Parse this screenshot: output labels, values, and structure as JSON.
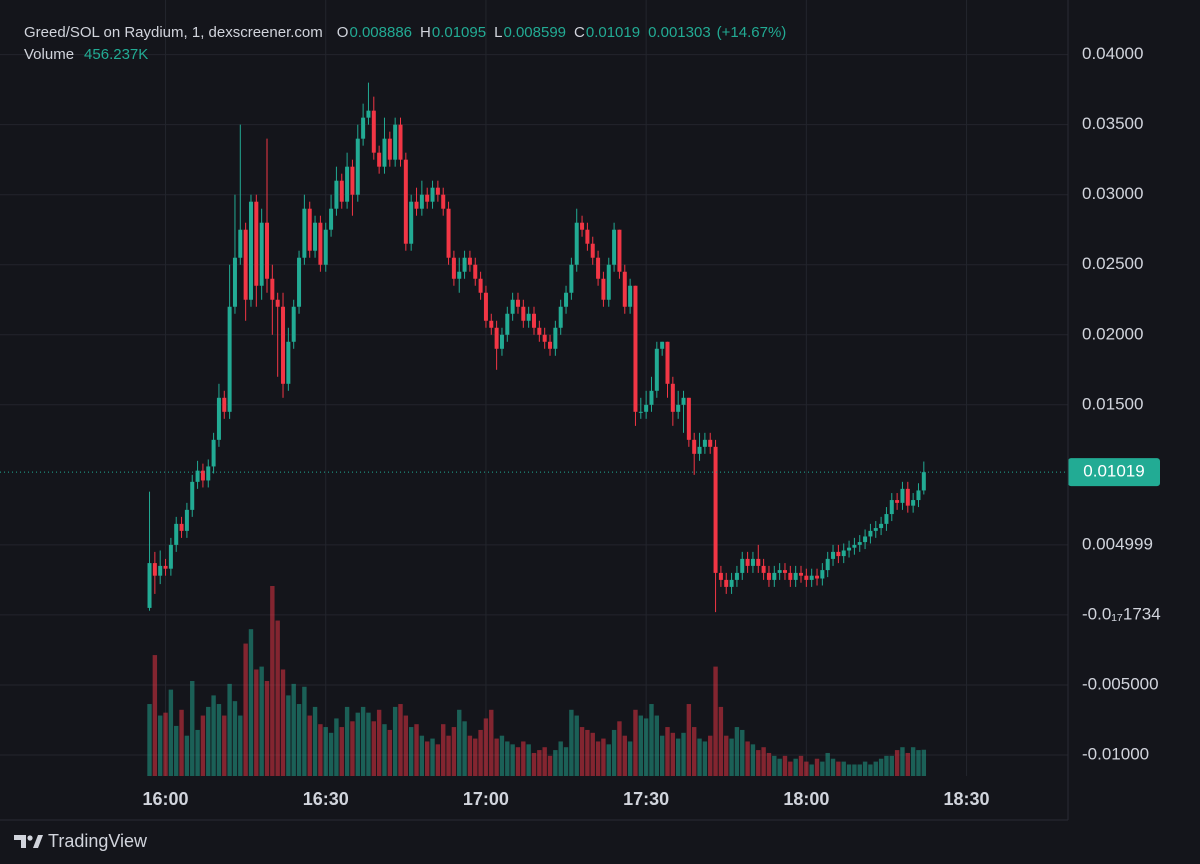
{
  "chart_data": {
    "type": "candlestick",
    "title": "Greed/SOL on Raydium, 1, dexscreener.com",
    "ohlc_labels": [
      "O",
      "H",
      "L",
      "C"
    ],
    "change": 0.001303,
    "change_label": "(+14.67%)",
    "volume_label": "Volume",
    "last_volume_label": "456.237K",
    "up_color": "#22ab94",
    "down_color": "#f23645",
    "grid": true,
    "xlim": [
      "15:29",
      "18:49"
    ],
    "xticks": [
      "16:00",
      "16:30",
      "17:00",
      "17:30",
      "18:00",
      "18:30"
    ],
    "ylim": [
      -0.0115,
      0.0439
    ],
    "yticks": [
      {
        "value": 0.04,
        "label": "0.04000"
      },
      {
        "value": 0.035,
        "label": "0.03500"
      },
      {
        "value": 0.03,
        "label": "0.03000"
      },
      {
        "value": 0.025,
        "label": "0.02500"
      },
      {
        "value": 0.02,
        "label": "0.02000"
      },
      {
        "value": 0.015,
        "label": "0.01500"
      },
      0.004999,
      {
        "value": -1.734e-18,
        "label": "-0.0₁₇1734"
      },
      {
        "value": -0.005,
        "label": "-0.005000"
      },
      {
        "value": -0.01,
        "label": "-0.01000"
      }
    ],
    "x": [
      "15:57",
      "15:58",
      "15:59",
      "16:00",
      "16:01",
      "16:02",
      "16:03",
      "16:04",
      "16:05",
      "16:06",
      "16:07",
      "16:08",
      "16:09",
      "16:10",
      "16:11",
      "16:12",
      "16:13",
      "16:14",
      "16:15",
      "16:16",
      "16:17",
      "16:18",
      "16:19",
      "16:20",
      "16:21",
      "16:22",
      "16:23",
      "16:24",
      "16:25",
      "16:26",
      "16:27",
      "16:28",
      "16:29",
      "16:30",
      "16:31",
      "16:32",
      "16:33",
      "16:34",
      "16:35",
      "16:36",
      "16:37",
      "16:38",
      "16:39",
      "16:40",
      "16:41",
      "16:42",
      "16:43",
      "16:44",
      "16:45",
      "16:46",
      "16:47",
      "16:48",
      "16:49",
      "16:50",
      "16:51",
      "16:52",
      "16:53",
      "16:54",
      "16:55",
      "16:56",
      "16:57",
      "16:58",
      "16:59",
      "17:00",
      "17:01",
      "17:02",
      "17:03",
      "17:04",
      "17:05",
      "17:06",
      "17:07",
      "17:08",
      "17:09",
      "17:10",
      "17:11",
      "17:12",
      "17:13",
      "17:14",
      "17:15",
      "17:16",
      "17:17",
      "17:18",
      "17:19",
      "17:20",
      "17:21",
      "17:22",
      "17:23",
      "17:24",
      "17:25",
      "17:26",
      "17:27",
      "17:28",
      "17:29",
      "17:30",
      "17:31",
      "17:32",
      "17:33",
      "17:34",
      "17:35",
      "17:36",
      "17:37",
      "17:38",
      "17:39",
      "17:40",
      "17:41",
      "17:42",
      "17:43",
      "17:44",
      "17:45",
      "17:46",
      "17:47",
      "17:48",
      "17:49",
      "17:50",
      "17:51",
      "17:52",
      "17:53",
      "17:54",
      "17:55",
      "17:56",
      "17:57",
      "17:58",
      "17:59",
      "18:00",
      "18:01",
      "18:02",
      "18:03",
      "18:04",
      "18:05",
      "18:06",
      "18:07",
      "18:08",
      "18:09",
      "18:10",
      "18:11",
      "18:12",
      "18:13",
      "18:14",
      "18:15",
      "18:16",
      "18:17",
      "18:18",
      "18:19",
      "18:20",
      "18:21",
      "18:22"
    ],
    "open": [
      0.0005,
      0.0037,
      0.0028,
      0.0035,
      0.0033,
      0.005,
      0.0065,
      0.006,
      0.0075,
      0.0095,
      0.0103,
      0.0096,
      0.0106,
      0.0125,
      0.0155,
      0.0145,
      0.022,
      0.0255,
      0.0275,
      0.0225,
      0.0295,
      0.0235,
      0.028,
      0.024,
      0.0225,
      0.022,
      0.0165,
      0.0195,
      0.022,
      0.0255,
      0.029,
      0.026,
      0.028,
      0.025,
      0.0275,
      0.029,
      0.031,
      0.0295,
      0.032,
      0.03,
      0.034,
      0.0355,
      0.036,
      0.033,
      0.032,
      0.034,
      0.0325,
      0.035,
      0.0325,
      0.0265,
      0.0295,
      0.029,
      0.03,
      0.0295,
      0.0305,
      0.03,
      0.029,
      0.0255,
      0.024,
      0.0245,
      0.0255,
      0.025,
      0.024,
      0.023,
      0.021,
      0.0205,
      0.019,
      0.02,
      0.0215,
      0.0225,
      0.022,
      0.021,
      0.0215,
      0.0205,
      0.02,
      0.0195,
      0.019,
      0.0205,
      0.022,
      0.023,
      0.025,
      0.028,
      0.0275,
      0.0265,
      0.0255,
      0.024,
      0.0225,
      0.025,
      0.0275,
      0.0245,
      0.022,
      0.0235,
      0.0145,
      0.0145,
      0.015,
      0.016,
      0.019,
      0.0195,
      0.0165,
      0.0145,
      0.015,
      0.0155,
      0.0125,
      0.0115,
      0.012,
      0.0125,
      0.012,
      0.003,
      0.0025,
      0.002,
      0.0025,
      0.003,
      0.004,
      0.0035,
      0.004,
      0.0035,
      0.003,
      0.0025,
      0.003,
      0.0032,
      0.003,
      0.0025,
      0.003,
      0.0028,
      0.0025,
      0.0028,
      0.0026,
      0.0032,
      0.004,
      0.0045,
      0.0042,
      0.0046,
      0.0048,
      0.005,
      0.0052,
      0.0056,
      0.006,
      0.0062,
      0.0065,
      0.0072,
      0.0082,
      0.008,
      0.009,
      0.0078,
      0.0082,
      0.008886
    ],
    "high": [
      0.0088,
      0.0045,
      0.0046,
      0.004,
      0.0055,
      0.007,
      0.007,
      0.008,
      0.01,
      0.011,
      0.0108,
      0.0111,
      0.013,
      0.0165,
      0.016,
      0.025,
      0.03,
      0.035,
      0.028,
      0.03,
      0.03,
      0.029,
      0.034,
      0.025,
      0.023,
      0.023,
      0.0205,
      0.0225,
      0.026,
      0.03,
      0.0295,
      0.0285,
      0.0285,
      0.028,
      0.03,
      0.032,
      0.0315,
      0.033,
      0.0325,
      0.035,
      0.0365,
      0.038,
      0.037,
      0.0335,
      0.0355,
      0.0345,
      0.0355,
      0.0355,
      0.033,
      0.03,
      0.0305,
      0.031,
      0.0305,
      0.031,
      0.031,
      0.0305,
      0.0295,
      0.026,
      0.0255,
      0.026,
      0.026,
      0.0255,
      0.0245,
      0.0235,
      0.0215,
      0.021,
      0.0205,
      0.022,
      0.023,
      0.023,
      0.0225,
      0.022,
      0.022,
      0.021,
      0.0205,
      0.02,
      0.021,
      0.0225,
      0.0235,
      0.0255,
      0.029,
      0.0285,
      0.028,
      0.027,
      0.026,
      0.0245,
      0.0255,
      0.028,
      0.0275,
      0.025,
      0.024,
      0.0235,
      0.0155,
      0.016,
      0.017,
      0.0195,
      0.0195,
      0.0195,
      0.017,
      0.016,
      0.016,
      0.0155,
      0.013,
      0.013,
      0.013,
      0.013,
      0.0125,
      0.0035,
      0.003,
      0.003,
      0.0035,
      0.0045,
      0.0045,
      0.0045,
      0.005,
      0.004,
      0.0035,
      0.0035,
      0.0037,
      0.0037,
      0.0035,
      0.0035,
      0.0035,
      0.0033,
      0.0033,
      0.0033,
      0.0037,
      0.0045,
      0.005,
      0.005,
      0.0051,
      0.0053,
      0.0055,
      0.0057,
      0.0061,
      0.0065,
      0.0067,
      0.007,
      0.0077,
      0.0087,
      0.0087,
      0.0095,
      0.0095,
      0.0087,
      0.0094,
      0.01095
    ],
    "low": [
      0.0003,
      0.0015,
      0.0022,
      0.0028,
      0.0028,
      0.0045,
      0.0055,
      0.0055,
      0.007,
      0.009,
      0.0091,
      0.0091,
      0.0101,
      0.012,
      0.014,
      0.014,
      0.0215,
      0.025,
      0.021,
      0.022,
      0.022,
      0.0225,
      0.023,
      0.02,
      0.017,
      0.0155,
      0.016,
      0.019,
      0.0215,
      0.025,
      0.0255,
      0.0255,
      0.0245,
      0.0245,
      0.027,
      0.0285,
      0.029,
      0.029,
      0.0285,
      0.0295,
      0.0335,
      0.035,
      0.0325,
      0.0315,
      0.0315,
      0.032,
      0.032,
      0.032,
      0.026,
      0.026,
      0.0285,
      0.0285,
      0.029,
      0.029,
      0.0295,
      0.0285,
      0.025,
      0.0235,
      0.023,
      0.024,
      0.0245,
      0.0235,
      0.0225,
      0.0205,
      0.02,
      0.0175,
      0.0185,
      0.0195,
      0.021,
      0.0215,
      0.0205,
      0.0205,
      0.02,
      0.0195,
      0.019,
      0.0185,
      0.0185,
      0.02,
      0.0215,
      0.0225,
      0.0245,
      0.027,
      0.026,
      0.025,
      0.0235,
      0.022,
      0.022,
      0.0245,
      0.024,
      0.0215,
      0.0215,
      0.0135,
      0.014,
      0.014,
      0.0145,
      0.0155,
      0.0185,
      0.0155,
      0.0135,
      0.014,
      0.013,
      0.012,
      0.01,
      0.011,
      0.0115,
      0.0115,
      0.0002,
      0.002,
      0.0015,
      0.0015,
      0.002,
      0.0025,
      0.003,
      0.003,
      0.003,
      0.0025,
      0.002,
      0.002,
      0.0025,
      0.0025,
      0.002,
      0.002,
      0.0023,
      0.002,
      0.002,
      0.0021,
      0.0021,
      0.0027,
      0.0035,
      0.0037,
      0.0037,
      0.0041,
      0.0043,
      0.0045,
      0.0047,
      0.0051,
      0.0055,
      0.0057,
      0.006,
      0.0067,
      0.0075,
      0.0075,
      0.0073,
      0.0073,
      0.0077,
      0.008599
    ],
    "close": [
      0.0037,
      0.0028,
      0.0035,
      0.0033,
      0.005,
      0.0065,
      0.006,
      0.0075,
      0.0095,
      0.0103,
      0.0096,
      0.0106,
      0.0125,
      0.0155,
      0.0145,
      0.022,
      0.0255,
      0.0275,
      0.0225,
      0.0295,
      0.0235,
      0.028,
      0.024,
      0.0225,
      0.022,
      0.0165,
      0.0195,
      0.022,
      0.0255,
      0.029,
      0.026,
      0.028,
      0.025,
      0.0275,
      0.029,
      0.031,
      0.0295,
      0.032,
      0.03,
      0.034,
      0.0355,
      0.036,
      0.033,
      0.032,
      0.034,
      0.0325,
      0.035,
      0.0325,
      0.0265,
      0.0295,
      0.029,
      0.03,
      0.0295,
      0.0305,
      0.03,
      0.029,
      0.0255,
      0.024,
      0.0245,
      0.0255,
      0.025,
      0.024,
      0.023,
      0.021,
      0.0205,
      0.019,
      0.02,
      0.0215,
      0.0225,
      0.022,
      0.021,
      0.0215,
      0.0205,
      0.02,
      0.0195,
      0.019,
      0.0205,
      0.022,
      0.023,
      0.025,
      0.028,
      0.0275,
      0.0265,
      0.0255,
      0.024,
      0.0225,
      0.025,
      0.0275,
      0.0245,
      0.022,
      0.0235,
      0.0145,
      0.0145,
      0.015,
      0.016,
      0.019,
      0.0195,
      0.0165,
      0.0145,
      0.015,
      0.0155,
      0.0125,
      0.0115,
      0.012,
      0.0125,
      0.012,
      0.003,
      0.0025,
      0.002,
      0.0025,
      0.003,
      0.004,
      0.0035,
      0.004,
      0.0035,
      0.003,
      0.0025,
      0.003,
      0.0032,
      0.003,
      0.0025,
      0.003,
      0.0028,
      0.0025,
      0.0028,
      0.0026,
      0.0032,
      0.004,
      0.0045,
      0.0042,
      0.0046,
      0.0048,
      0.005,
      0.0052,
      0.0056,
      0.006,
      0.0062,
      0.0065,
      0.0072,
      0.0082,
      0.008,
      0.009,
      0.0078,
      0.0082,
      0.008886,
      0.01019
    ],
    "volume": [
      1250,
      2100,
      1050,
      1100,
      1500,
      870,
      1150,
      700,
      1650,
      800,
      1050,
      1200,
      1400,
      1250,
      1050,
      1600,
      1300,
      1050,
      2300,
      2550,
      1850,
      1900,
      1650,
      3300,
      2700,
      1850,
      1400,
      1600,
      1250,
      1550,
      1050,
      1200,
      900,
      850,
      750,
      1000,
      850,
      1200,
      950,
      1100,
      1200,
      1100,
      950,
      1150,
      900,
      800,
      1200,
      1250,
      1050,
      850,
      900,
      700,
      600,
      650,
      550,
      900,
      700,
      850,
      1150,
      950,
      700,
      650,
      800,
      1000,
      1150,
      650,
      700,
      600,
      550,
      500,
      600,
      550,
      400,
      450,
      500,
      350,
      450,
      600,
      500,
      1150,
      1050,
      850,
      800,
      750,
      600,
      650,
      550,
      800,
      950,
      700,
      600,
      1150,
      1050,
      1000,
      1250,
      1050,
      700,
      850,
      750,
      650,
      750,
      1250,
      850,
      650,
      600,
      700,
      1900,
      1200,
      700,
      650,
      850,
      800,
      600,
      550,
      450,
      500,
      400,
      350,
      300,
      350,
      250,
      300,
      350,
      250,
      200,
      300,
      250,
      400,
      300,
      250,
      250,
      200,
      200,
      200,
      250,
      200,
      250,
      300,
      350,
      350,
      450,
      500,
      400,
      500,
      450,
      456.237
    ]
  },
  "footer": {
    "brand": "TradingView"
  }
}
